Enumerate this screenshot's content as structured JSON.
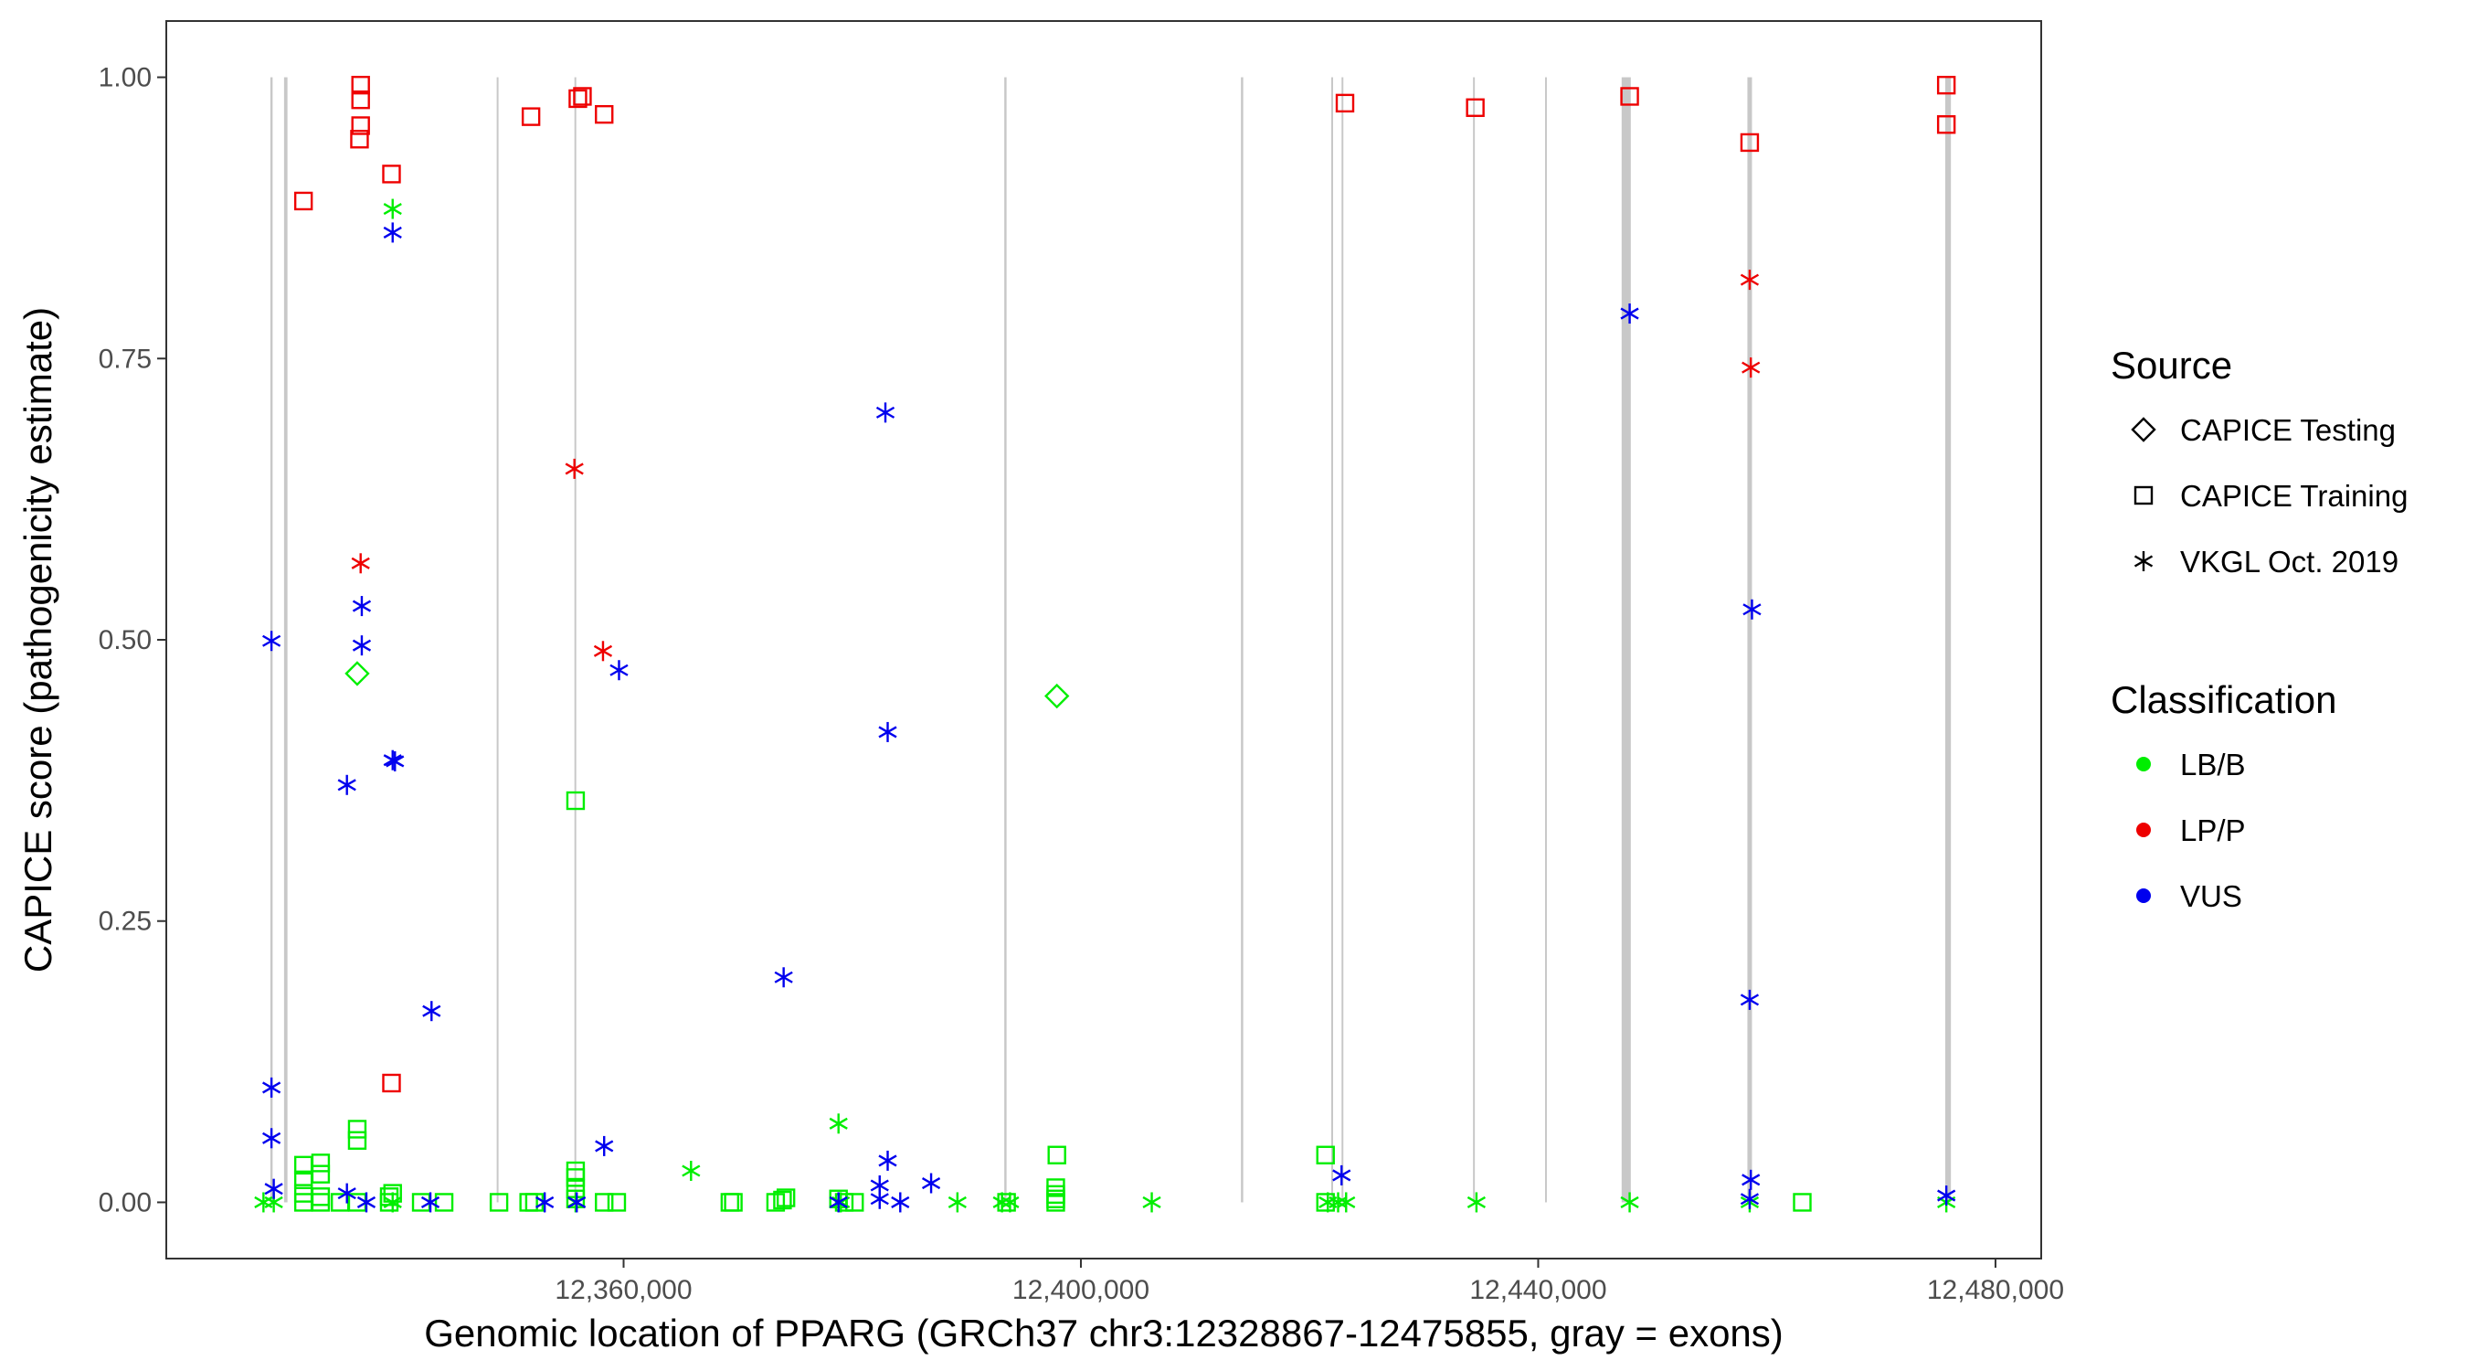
{
  "chart_data": {
    "type": "scatter",
    "xlabel": "Genomic location of PPARG (GRCh37 chr3:12328867-12475855, gray = exons)",
    "ylabel": "CAPICE score (pathogenicity estimate)",
    "xlim": [
      12320000,
      12484000
    ],
    "ylim": [
      -0.05,
      1.05
    ],
    "x_ticks": [
      12360000,
      12400000,
      12440000,
      12480000
    ],
    "x_tick_labels": [
      "12,360,000",
      "12,400,000",
      "12,440,000",
      "12,480,000"
    ],
    "y_ticks": [
      0,
      0.25,
      0.5,
      0.75,
      1.0
    ],
    "y_tick_labels": [
      "0.00",
      "0.25",
      "0.50",
      "0.75",
      "1.00"
    ],
    "grid": false,
    "exons": [
      [
        12329100,
        12329300
      ],
      [
        12330300,
        12330600
      ],
      [
        12348900,
        12349000
      ],
      [
        12355700,
        12355800
      ],
      [
        12393300,
        12393500
      ],
      [
        12414000,
        12414200
      ],
      [
        12421900,
        12422000
      ],
      [
        12422800,
        12422900
      ],
      [
        12434300,
        12434400
      ],
      [
        12440600,
        12440700
      ],
      [
        12447300,
        12448100
      ],
      [
        12458300,
        12458700
      ],
      [
        12475600,
        12476100
      ]
    ],
    "legend": [
      {
        "title": "Source",
        "entries": [
          {
            "label": "CAPICE Testing",
            "shape": "diamond"
          },
          {
            "label": "CAPICE Training",
            "shape": "square"
          },
          {
            "label": "VKGL Oct. 2019",
            "shape": "asterisk"
          }
        ]
      },
      {
        "title": "Classification",
        "entries": [
          {
            "label": "LB/B",
            "color": "#00ee00"
          },
          {
            "label": "LP/P",
            "color": "#ee0000"
          },
          {
            "label": "VUS",
            "color": "#0000ee"
          }
        ]
      }
    ],
    "legend_position": "right",
    "colors": {
      "LB/B": "#00ee00",
      "LP/P": "#ee0000",
      "VUS": "#0000ee"
    },
    "series": [
      {
        "source": "CAPICE Testing",
        "classification": "LB/B",
        "shape": "diamond",
        "points": [
          [
            12336700,
            0.47
          ],
          [
            12397900,
            0.45
          ]
        ]
      },
      {
        "source": "CAPICE Training",
        "classification": "LP/P",
        "shape": "square",
        "points": [
          [
            12332000,
            0.89
          ],
          [
            12337000,
            0.993
          ],
          [
            12337000,
            0.98
          ],
          [
            12337000,
            0.957
          ],
          [
            12336900,
            0.945
          ],
          [
            12339700,
            0.914
          ],
          [
            12339700,
            0.106
          ],
          [
            12351900,
            0.965
          ],
          [
            12356000,
            0.981
          ],
          [
            12356400,
            0.983
          ],
          [
            12358300,
            0.967
          ],
          [
            12423100,
            0.977
          ],
          [
            12434500,
            0.973
          ],
          [
            12448000,
            0.983
          ],
          [
            12458500,
            0.942
          ],
          [
            12475700,
            0.993
          ],
          [
            12475700,
            0.958
          ]
        ]
      },
      {
        "source": "CAPICE Training",
        "classification": "LB/B",
        "shape": "square",
        "points": [
          [
            12355800,
            0.357
          ],
          [
            12336700,
            0.065
          ],
          [
            12336700,
            0.055
          ],
          [
            12332000,
            0.033
          ],
          [
            12333500,
            0.035
          ],
          [
            12333500,
            0.025
          ],
          [
            12332000,
            0.02
          ],
          [
            12332000,
            0.008
          ],
          [
            12333500,
            0.005
          ],
          [
            12332000,
            0.0
          ],
          [
            12333500,
            0.0
          ],
          [
            12335200,
            0.0
          ],
          [
            12336700,
            0.0
          ],
          [
            12339500,
            0.005
          ],
          [
            12339500,
            0.0
          ],
          [
            12339800,
            0.008
          ],
          [
            12342300,
            0.0
          ],
          [
            12344300,
            0.0
          ],
          [
            12349100,
            0.0
          ],
          [
            12351700,
            0.0
          ],
          [
            12352200,
            0.0
          ],
          [
            12355800,
            0.028
          ],
          [
            12355800,
            0.022
          ],
          [
            12355800,
            0.012
          ],
          [
            12355800,
            0.003
          ],
          [
            12358300,
            0.0
          ],
          [
            12359400,
            0.0
          ],
          [
            12369300,
            0.0
          ],
          [
            12369600,
            0.0
          ],
          [
            12373300,
            0.0
          ],
          [
            12373900,
            0.002
          ],
          [
            12374200,
            0.004
          ],
          [
            12378800,
            0.003
          ],
          [
            12379300,
            0.0
          ],
          [
            12380200,
            0.0
          ],
          [
            12393500,
            0.0
          ],
          [
            12397900,
            0.042
          ],
          [
            12397800,
            0.013
          ],
          [
            12397800,
            0.007
          ],
          [
            12397800,
            0.003
          ],
          [
            12397800,
            0.0
          ],
          [
            12421400,
            0.042
          ],
          [
            12421400,
            0.0
          ],
          [
            12463100,
            0.0
          ]
        ]
      },
      {
        "source": "VKGL Oct. 2019",
        "classification": "LB/B",
        "shape": "asterisk",
        "points": [
          [
            12339800,
            0.883
          ],
          [
            12378800,
            0.07
          ],
          [
            12365900,
            0.028
          ],
          [
            12328500,
            0.0
          ],
          [
            12329400,
            0.0
          ],
          [
            12339800,
            0.0
          ],
          [
            12355800,
            0.0
          ],
          [
            12379000,
            0.0
          ],
          [
            12389200,
            0.0
          ],
          [
            12393100,
            0.0
          ],
          [
            12393800,
            0.0
          ],
          [
            12406200,
            0.0
          ],
          [
            12421600,
            0.0
          ],
          [
            12422500,
            0.0
          ],
          [
            12423200,
            0.0
          ],
          [
            12434600,
            0.0
          ],
          [
            12448000,
            0.0
          ],
          [
            12458500,
            0.0
          ],
          [
            12475700,
            0.0
          ]
        ]
      },
      {
        "source": "VKGL Oct. 2019",
        "classification": "LP/P",
        "shape": "asterisk",
        "points": [
          [
            12337000,
            0.568
          ],
          [
            12355700,
            0.652
          ],
          [
            12358200,
            0.49
          ],
          [
            12458500,
            0.82
          ],
          [
            12458600,
            0.742
          ]
        ]
      },
      {
        "source": "VKGL Oct. 2019",
        "classification": "VUS",
        "shape": "asterisk",
        "points": [
          [
            12339800,
            0.862
          ],
          [
            12337100,
            0.53
          ],
          [
            12337100,
            0.495
          ],
          [
            12329200,
            0.499
          ],
          [
            12335800,
            0.371
          ],
          [
            12339800,
            0.393
          ],
          [
            12340000,
            0.392
          ],
          [
            12343200,
            0.17
          ],
          [
            12329200,
            0.102
          ],
          [
            12329200,
            0.057
          ],
          [
            12329400,
            0.012
          ],
          [
            12335800,
            0.008
          ],
          [
            12337500,
            0.0
          ],
          [
            12343100,
            0.0
          ],
          [
            12353100,
            0.0
          ],
          [
            12355900,
            0.0
          ],
          [
            12358300,
            0.05
          ],
          [
            12359600,
            0.473
          ],
          [
            12374000,
            0.2
          ],
          [
            12382900,
            0.702
          ],
          [
            12383100,
            0.418
          ],
          [
            12383100,
            0.037
          ],
          [
            12382400,
            0.015
          ],
          [
            12382400,
            0.003
          ],
          [
            12384200,
            0.0
          ],
          [
            12386900,
            0.017
          ],
          [
            12378800,
            0.0
          ],
          [
            12422800,
            0.024
          ],
          [
            12448000,
            0.79
          ],
          [
            12458700,
            0.527
          ],
          [
            12458500,
            0.18
          ],
          [
            12458600,
            0.02
          ],
          [
            12458500,
            0.003
          ],
          [
            12475700,
            0.006
          ]
        ]
      }
    ]
  }
}
